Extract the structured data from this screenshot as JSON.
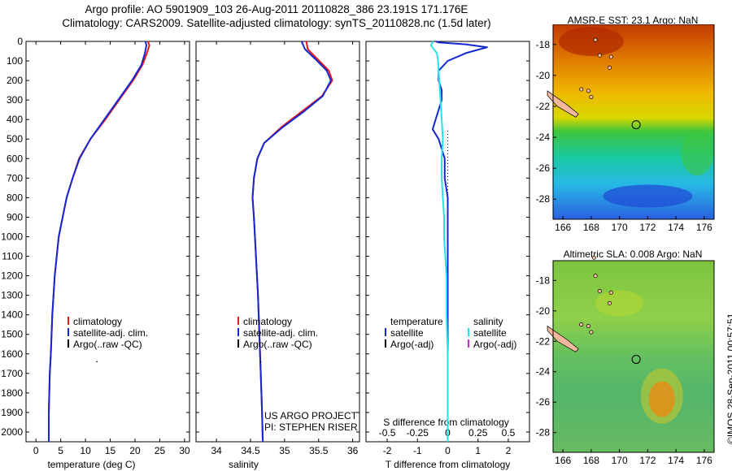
{
  "titles": {
    "line1": "Argo profile: AO 5901909_103 26-Aug-2011 20110828_386 23.191S 171.176E",
    "line2": "Climatology: CARS2009. Satellite-adjusted climatology: synTS_20110828.nc (1.5d later)"
  },
  "maps": {
    "sst_title": "AMSR-E SST: 23.1 Argo: NaN",
    "sla_title": "Altimetric SLA: 0.008 Argo: NaN",
    "lon_ticks": [
      "166",
      "168",
      "170",
      "172",
      "174",
      "176"
    ],
    "lat_ticks": [
      "-18",
      "-20",
      "-22",
      "-24",
      "-26",
      "-28"
    ],
    "float_marker": "circle",
    "land_color": "#f4b89c"
  },
  "credits": {
    "project": "US ARGO PROJECT",
    "pi": "PI: STEPHEN RISER",
    "stamp": "©IMOS 28-Sep-2011 00:57:51"
  },
  "colors": {
    "climatology": "#e8141e",
    "satellite": "#1428d2",
    "argo": "#000000",
    "sal_satellite": "#22e3ea",
    "sal_argo": "#d22ad2"
  },
  "chart_data": [
    {
      "type": "line",
      "xlabel": "temperature (deg C)",
      "ylabel": "",
      "xlim": [
        -2,
        31
      ],
      "ylim": [
        2050,
        0
      ],
      "xticks": [
        "0",
        "5",
        "10",
        "15",
        "20",
        "25",
        "30"
      ],
      "yticks": [
        "0",
        "100",
        "200",
        "300",
        "400",
        "500",
        "600",
        "700",
        "800",
        "900",
        "1000",
        "1100",
        "1200",
        "1300",
        "1400",
        "1500",
        "1600",
        "1700",
        "1800",
        "1900",
        "2000"
      ],
      "legend": [
        "climatology",
        "satellite-adj. clim.",
        "Argo(..raw -QC)"
      ],
      "legend_position": "lower-center",
      "series": [
        {
          "name": "climatology",
          "x": [
            22.6,
            22.9,
            22.4,
            21.5,
            19.6,
            16.8,
            14.0,
            11.0,
            8.7,
            7.4,
            6.2,
            4.6,
            3.8,
            3.3,
            3.0,
            2.8,
            2.7,
            2.6,
            2.6
          ],
          "y": [
            0,
            20,
            60,
            120,
            200,
            300,
            400,
            500,
            600,
            700,
            800,
            1000,
            1200,
            1400,
            1600,
            1700,
            1800,
            1900,
            2050
          ]
        },
        {
          "name": "satellite-adj. clim.",
          "x": [
            22.1,
            22.3,
            22.0,
            21.3,
            19.4,
            16.6,
            13.8,
            11.0,
            8.8,
            7.4,
            6.2,
            4.6,
            3.8,
            3.3,
            3.0,
            2.8,
            2.7,
            2.6,
            2.6
          ],
          "y": [
            0,
            20,
            60,
            120,
            200,
            300,
            400,
            500,
            600,
            700,
            800,
            1000,
            1200,
            1400,
            1600,
            1700,
            1800,
            1900,
            2050
          ]
        }
      ]
    },
    {
      "type": "line",
      "xlabel": "salinity",
      "ylabel": "",
      "xlim": [
        33.7,
        36.1
      ],
      "ylim": [
        2050,
        0
      ],
      "xticks": [
        "34",
        "34.5",
        "35",
        "35.5",
        "36"
      ],
      "legend": [
        "climatology",
        "satellite-adj. clim.",
        "Argo(..raw -QC)"
      ],
      "legend_position": "lower-center",
      "series": [
        {
          "name": "climatology",
          "x": [
            35.32,
            35.34,
            35.48,
            35.65,
            35.7,
            35.55,
            35.25,
            34.95,
            34.7,
            34.6,
            34.55,
            34.53,
            34.55,
            34.58,
            34.61,
            34.63,
            34.65,
            34.66,
            34.67,
            34.68
          ],
          "y": [
            0,
            40,
            90,
            150,
            200,
            280,
            360,
            440,
            520,
            600,
            700,
            800,
            900,
            1100,
            1300,
            1500,
            1700,
            1800,
            1900,
            2050
          ]
        },
        {
          "name": "satellite-adj. clim.",
          "x": [
            35.25,
            35.3,
            35.45,
            35.62,
            35.68,
            35.56,
            35.28,
            34.97,
            34.7,
            34.6,
            34.55,
            34.53,
            34.55,
            34.58,
            34.61,
            34.63,
            34.65,
            34.66,
            34.67,
            34.68
          ],
          "y": [
            0,
            40,
            90,
            150,
            200,
            280,
            360,
            440,
            520,
            600,
            700,
            800,
            900,
            1100,
            1300,
            1500,
            1700,
            1800,
            1900,
            2050
          ]
        }
      ]
    },
    {
      "type": "line",
      "xlabel": "T difference from climatology",
      "xlabel2": "S difference from climatology",
      "xlim": [
        -2.7,
        2.7
      ],
      "ylim": [
        2050,
        0
      ],
      "xticks": [
        "-2",
        "-1",
        "0",
        "1",
        "2"
      ],
      "xticks2": [
        "-0.5",
        "-0.25",
        "0",
        "0.25",
        "0.5"
      ],
      "legend": [
        "temperature",
        "satellite",
        "Argo(-adj)",
        "salinity",
        "satellite",
        "Argo(-adj)"
      ],
      "legend_position": "lower-center",
      "series": [
        {
          "name": "temperature satellite",
          "x": [
            -0.4,
            -0.3,
            0.6,
            1.3,
            0.6,
            0.0,
            -0.3,
            -0.3,
            -0.2,
            -0.2,
            -0.4,
            -0.5,
            -0.3,
            -0.1,
            -0.1,
            0.0,
            0.0,
            0.0,
            0.0,
            0.0
          ],
          "y": [
            0,
            5,
            15,
            30,
            60,
            100,
            150,
            200,
            250,
            300,
            400,
            450,
            500,
            600,
            700,
            800,
            1000,
            1300,
            1600,
            2050
          ]
        },
        {
          "name": "salinity satellite",
          "x": [
            -0.12,
            -0.14,
            -0.09,
            -0.08,
            -0.07,
            -0.06,
            -0.05,
            -0.04,
            -0.05,
            -0.05,
            -0.04,
            -0.03,
            -0.03,
            -0.02,
            -0.01,
            -0.01,
            0.0,
            0.0,
            0.0
          ],
          "y": [
            0,
            20,
            60,
            100,
            200,
            300,
            400,
            500,
            600,
            700,
            800,
            900,
            1000,
            1100,
            1200,
            1400,
            1600,
            1800,
            2050
          ]
        }
      ]
    }
  ]
}
